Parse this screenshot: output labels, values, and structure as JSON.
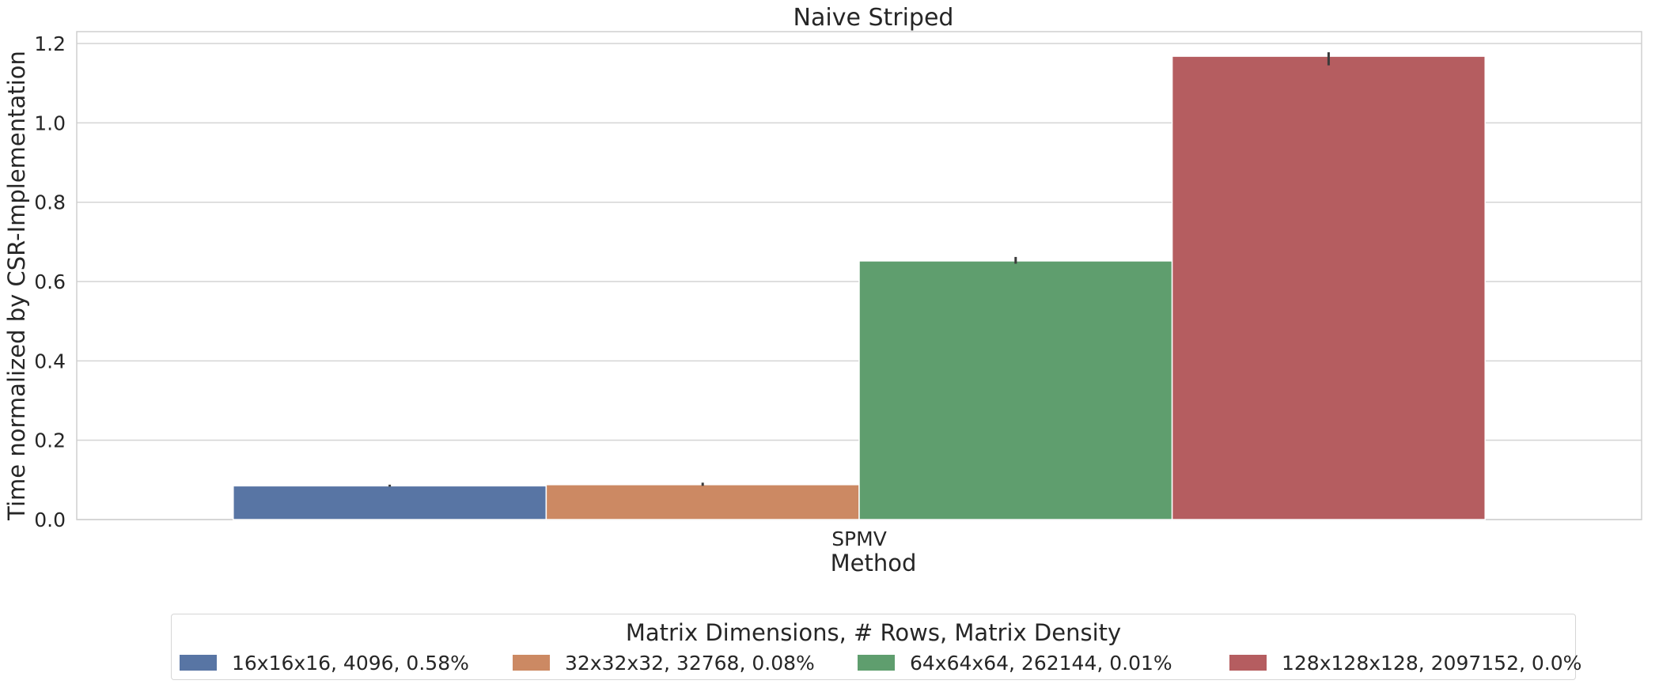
{
  "chart_data": {
    "type": "bar",
    "title": "Naive Striped",
    "xlabel": "Method",
    "ylabel": "Time normalized by CSR-Implementation",
    "categories": [
      "SPMV"
    ],
    "ylim": [
      0,
      1.23
    ],
    "yticks": [
      "0.0",
      "0.2",
      "0.4",
      "0.6",
      "0.8",
      "1.0",
      "1.2"
    ],
    "grid": true,
    "legend_title": "Matrix Dimensions, # Rows, Matrix Density",
    "legend_position": "bottom-center",
    "series": [
      {
        "name": "16x16x16, 4096, 0.58%",
        "color": "#5875a4",
        "values": [
          0.085
        ],
        "err": [
          [
            0.083,
            0.088
          ]
        ]
      },
      {
        "name": "32x32x32, 32768, 0.08%",
        "color": "#cc8963",
        "values": [
          0.088
        ],
        "err": [
          [
            0.085,
            0.093
          ]
        ]
      },
      {
        "name": "64x64x64, 262144, 0.01%",
        "color": "#5f9e6e",
        "values": [
          0.652
        ],
        "err": [
          [
            0.645,
            0.662
          ]
        ]
      },
      {
        "name": "128x128x128, 2097152, 0.0%",
        "color": "#b55d60",
        "values": [
          1.168
        ],
        "err": [
          [
            1.145,
            1.178
          ]
        ]
      }
    ]
  }
}
